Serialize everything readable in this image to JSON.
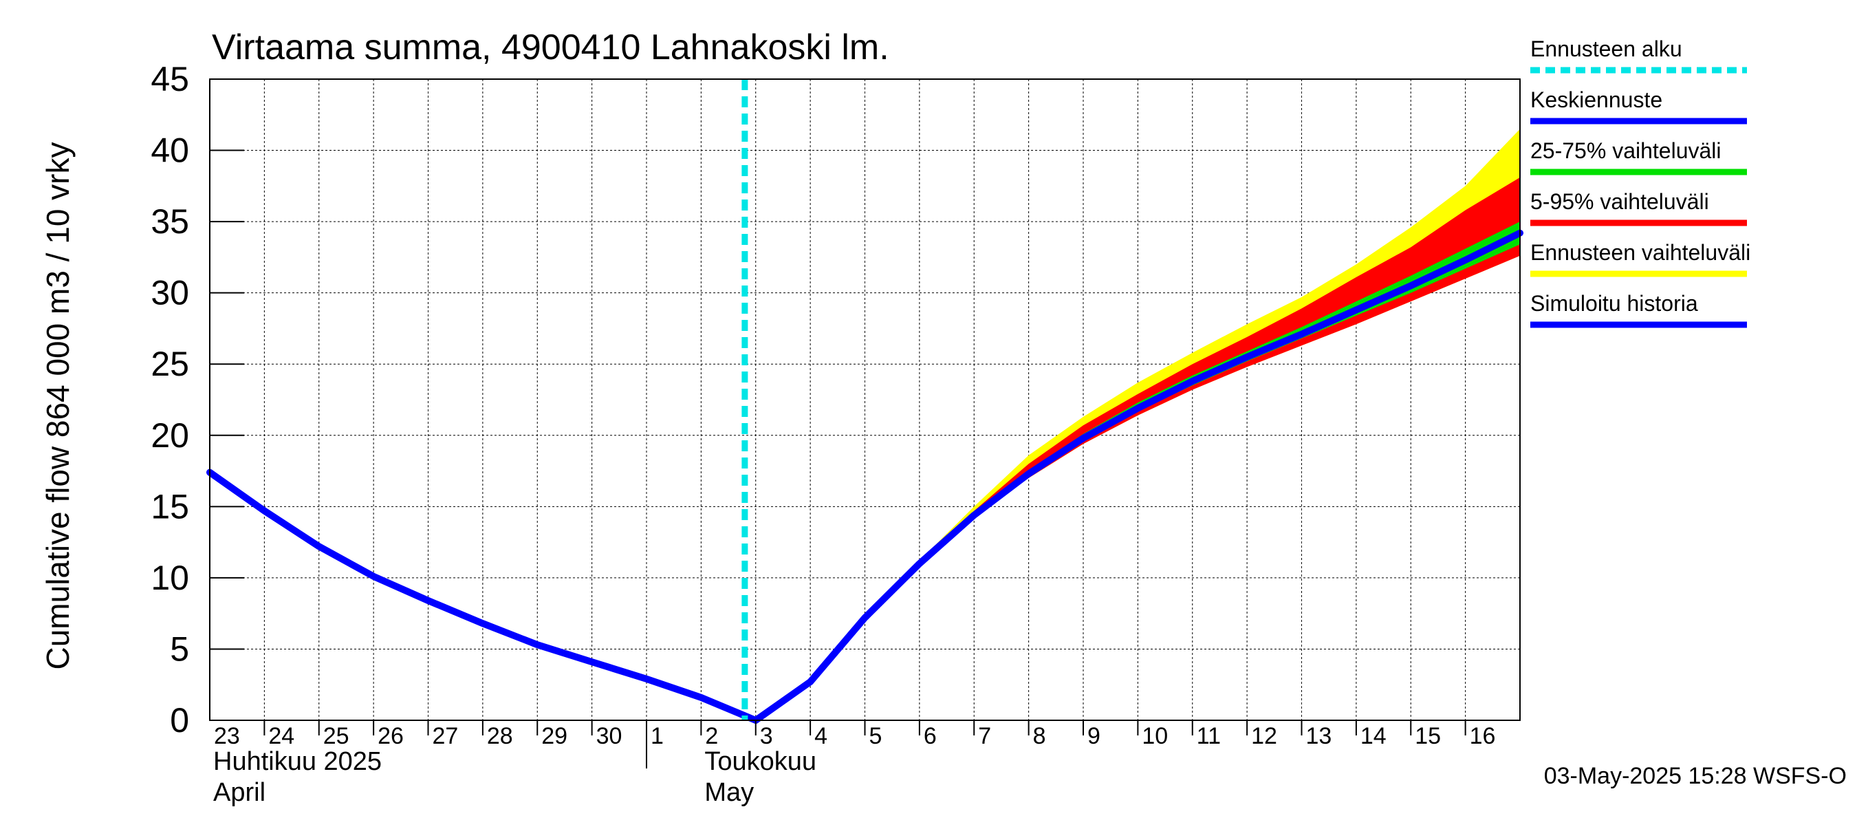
{
  "chart_data": {
    "type": "line",
    "title": "Virtaama summa, 4900410 Lahnakoski lm.",
    "ylabel": "Cumulative flow    864 000 m3 / 10 vrky",
    "ylim": [
      0,
      45
    ],
    "yticks": [
      0,
      5,
      10,
      15,
      20,
      25,
      30,
      35,
      40,
      45
    ],
    "xlim": [
      "2025-04-23",
      "2025-05-17"
    ],
    "x_tick_labels": [
      "23",
      "24",
      "25",
      "26",
      "27",
      "28",
      "29",
      "30",
      "1",
      "2",
      "3",
      "4",
      "5",
      "6",
      "7",
      "8",
      "9",
      "10",
      "11",
      "12",
      "13",
      "14",
      "15",
      "16"
    ],
    "month_labels": [
      {
        "line1": "Huhtikuu  2025",
        "line2": "April"
      },
      {
        "line1": "Toukokuu",
        "line2": "May"
      }
    ],
    "forecast_start": "2025-05-03",
    "grid": true,
    "legend_position": "right",
    "legend": [
      {
        "label": "Ennusteen alku",
        "color": "#00e5e5",
        "style": "dashed"
      },
      {
        "label": "Keskiennuste",
        "color": "#0000ff"
      },
      {
        "label": "25-75% vaihteluväli",
        "color": "#00e000"
      },
      {
        "label": "5-95% vaihteluväli",
        "color": "#ff0000"
      },
      {
        "label": "Ennusteen vaihteluväli",
        "color": "#ffff00"
      },
      {
        "label": "Simuloitu historia",
        "color": "#0000ff"
      }
    ],
    "series": [
      {
        "name": "Simuloitu historia",
        "color": "#0000ff",
        "x": [
          "2025-04-23",
          "2025-04-24",
          "2025-04-25",
          "2025-04-26",
          "2025-04-27",
          "2025-04-28",
          "2025-04-29",
          "2025-04-30",
          "2025-05-01",
          "2025-05-02",
          "2025-05-03"
        ],
        "y": [
          17.4,
          14.7,
          12.2,
          10.1,
          8.4,
          6.8,
          5.3,
          4.1,
          2.9,
          1.6,
          0.0
        ]
      },
      {
        "name": "Keskiennuste",
        "color": "#0000ff",
        "x": [
          "2025-05-03",
          "2025-05-04",
          "2025-05-05",
          "2025-05-06",
          "2025-05-07",
          "2025-05-08",
          "2025-05-09",
          "2025-05-10",
          "2025-05-11",
          "2025-05-12",
          "2025-05-13",
          "2025-05-14",
          "2025-05-15",
          "2025-05-16",
          "2025-05-17"
        ],
        "y": [
          0.0,
          2.7,
          7.2,
          11.0,
          14.4,
          17.3,
          19.8,
          21.9,
          23.8,
          25.5,
          27.1,
          28.8,
          30.5,
          32.3,
          34.2
        ]
      }
    ],
    "bands": [
      {
        "name": "Ennusteen vaihteluväli",
        "color": "#ffff00",
        "x": [
          "2025-05-06",
          "2025-05-07",
          "2025-05-08",
          "2025-05-09",
          "2025-05-10",
          "2025-05-11",
          "2025-05-12",
          "2025-05-13",
          "2025-05-14",
          "2025-05-15",
          "2025-05-16",
          "2025-05-17"
        ],
        "upper": [
          11.2,
          15.0,
          18.6,
          21.3,
          23.7,
          25.8,
          27.8,
          29.7,
          32.0,
          34.6,
          37.5,
          41.5
        ],
        "lower": [
          11.0,
          14.3,
          17.0,
          19.4,
          21.4,
          23.2,
          24.8,
          26.3,
          27.8,
          29.4,
          31.0,
          32.6
        ]
      },
      {
        "name": "5-95% vaihteluväli",
        "color": "#ff0000",
        "x": [
          "2025-05-06",
          "2025-05-07",
          "2025-05-08",
          "2025-05-09",
          "2025-05-10",
          "2025-05-11",
          "2025-05-12",
          "2025-05-13",
          "2025-05-14",
          "2025-05-15",
          "2025-05-16",
          "2025-05-17"
        ],
        "upper": [
          11.1,
          14.7,
          18.0,
          20.7,
          22.9,
          25.0,
          26.9,
          28.9,
          31.1,
          33.2,
          35.8,
          38.1
        ],
        "lower": [
          11.0,
          14.3,
          17.0,
          19.4,
          21.4,
          23.2,
          24.8,
          26.3,
          27.8,
          29.4,
          31.0,
          32.6
        ]
      },
      {
        "name": "25-75% vaihteluväli",
        "color": "#00e000",
        "x": [
          "2025-05-06",
          "2025-05-07",
          "2025-05-08",
          "2025-05-09",
          "2025-05-10",
          "2025-05-11",
          "2025-05-12",
          "2025-05-13",
          "2025-05-14",
          "2025-05-15",
          "2025-05-16",
          "2025-05-17"
        ],
        "upper": [
          11.0,
          14.5,
          17.5,
          20.1,
          22.3,
          24.2,
          25.9,
          27.6,
          29.4,
          31.2,
          33.1,
          35.0
        ],
        "lower": [
          11.0,
          14.4,
          17.2,
          19.6,
          21.7,
          23.5,
          25.2,
          26.8,
          28.4,
          30.0,
          31.7,
          33.4
        ]
      }
    ]
  },
  "footer": {
    "timestamp": "03-May-2025 15:28 WSFS-O"
  }
}
